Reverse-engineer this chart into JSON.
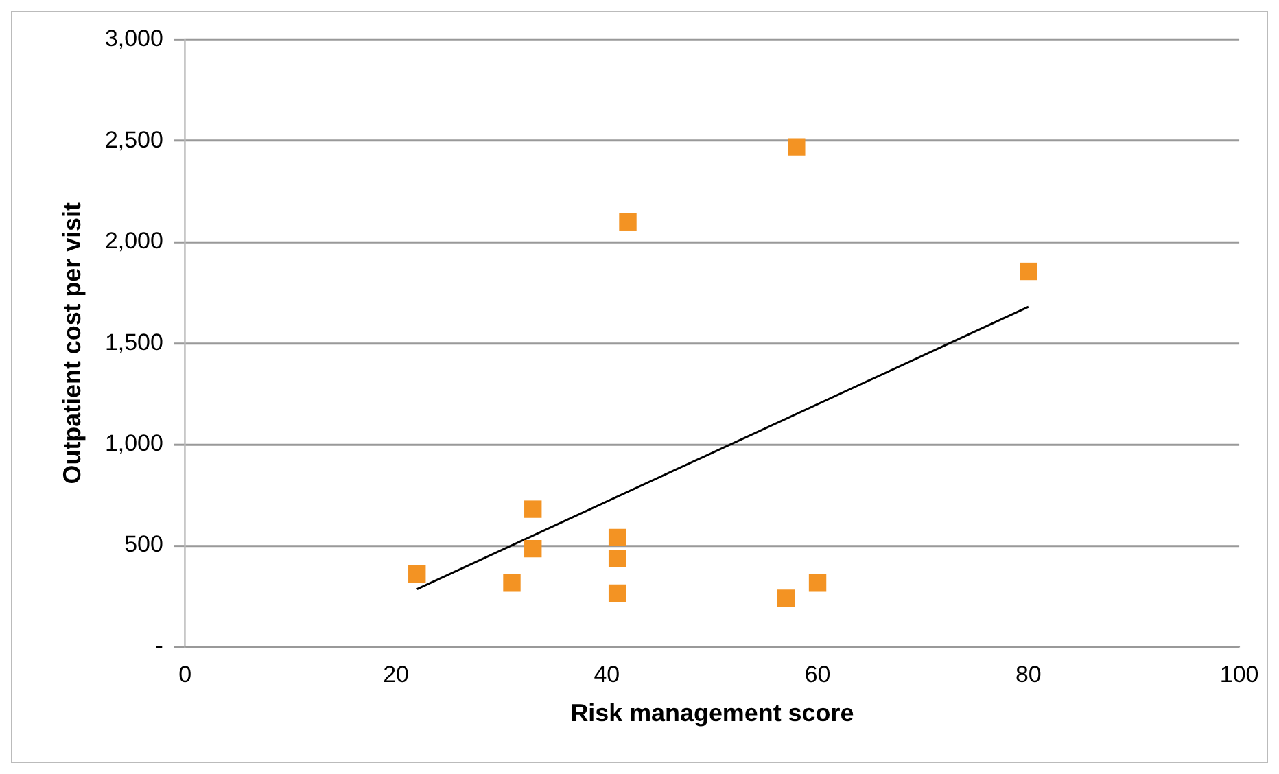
{
  "chart_data": {
    "type": "scatter",
    "xlabel": "Risk management score",
    "ylabel": "Outpatient cost per visit",
    "xlim": [
      0,
      100
    ],
    "xticks": [
      0,
      20,
      40,
      60,
      80,
      100
    ],
    "ylim": [
      0,
      3000
    ],
    "yticks": [
      {
        "value": 0,
        "label": "-"
      },
      500,
      {
        "value": 1000,
        "label": "1,000"
      },
      {
        "value": 1500,
        "label": "1,500"
      },
      {
        "value": 2000,
        "label": "2,000"
      },
      {
        "value": 2500,
        "label": "2,500"
      },
      {
        "value": 3000,
        "label": "3,000"
      }
    ],
    "grid": "y",
    "legend": false,
    "marker": "square",
    "series": [
      {
        "type": "scatter",
        "color": "#f39323",
        "x": [
          22,
          31,
          33,
          33,
          41,
          41,
          41,
          42,
          58,
          57,
          60,
          80
        ],
        "values": [
          360,
          315,
          680,
          485,
          540,
          435,
          265,
          2100,
          2470,
          240,
          315,
          1855
        ]
      },
      {
        "type": "line",
        "color": "#000000",
        "marker": "none",
        "x": [
          22,
          80
        ],
        "values": [
          285,
          1680
        ]
      }
    ]
  }
}
